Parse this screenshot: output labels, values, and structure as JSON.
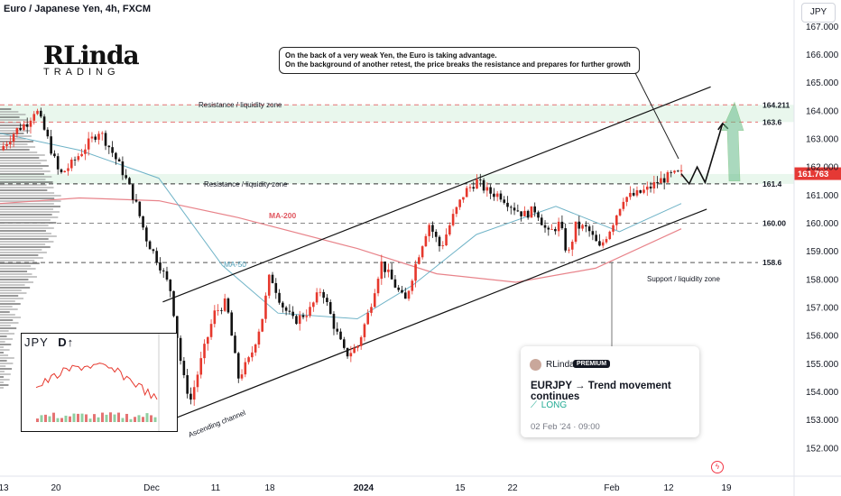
{
  "symbol_title": "Euro / Japanese Yen, 4h, FXCM",
  "currency_button": "JPY",
  "logo": {
    "top": "RLinda",
    "bottom": "TRADING"
  },
  "note": {
    "line1": "On the back of a very weak Yen, the Euro is taking advantage.",
    "line2": "On the background of another retest, the price breaks the resistance and prepares for further growth"
  },
  "card": {
    "author": "RLinda",
    "badge": "PREMIUM",
    "title": "EURJPY → Trend movement continues",
    "direction_icon": "trend-up-icon",
    "direction": "LONG",
    "date": "02 Feb '24 · 09:00"
  },
  "inset": {
    "symbol": "JPY",
    "symbol_mark": "D↑"
  },
  "colors": {
    "up": "#e6382d",
    "down": "#111111",
    "ma200": "#e8838a",
    "ma50": "#6fb3c7",
    "price_badge": "#e53935",
    "zone": "#dff3e6"
  },
  "chart_data": {
    "type": "candlestick",
    "symbol": "EURJPY",
    "timeframe": "4h",
    "yaxis": {
      "ticks": [
        "167.000",
        "166.000",
        "165.000",
        "164.000",
        "163.000",
        "162.000",
        "161.000",
        "160.000",
        "159.000",
        "158.000",
        "157.000",
        "156.000",
        "155.000",
        "154.000",
        "153.000",
        "152.000"
      ],
      "range": [
        151.0,
        167.3
      ]
    },
    "xaxis": {
      "ticks": [
        "13",
        "20",
        "Dec",
        "11",
        "18",
        "2024",
        "15",
        "22",
        "Feb",
        "12",
        "19"
      ]
    },
    "last_price": "161.763",
    "levels": [
      {
        "price": 164.211,
        "label": "164.211"
      },
      {
        "price": 163.6,
        "label": "163.6"
      },
      {
        "price": 161.4,
        "label": "161.4"
      },
      {
        "price": 160.0,
        "label": "160.00"
      },
      {
        "price": 158.6,
        "label": "158.6"
      }
    ],
    "annotations": {
      "resistance_top": "Resistance / liquidity zone",
      "resistance_mid": "Resistance / liquidity zone",
      "support": "Support / liquidity zone",
      "channel": "Ascending channel",
      "ma200": "MA-200",
      "ma50": "MA-50"
    },
    "channel": {
      "upper": [
        {
          "t": 0.205,
          "price": 157.2
        },
        {
          "t": 0.895,
          "price": 164.85
        }
      ],
      "lower": [
        {
          "t": 0.215,
          "price": 153.0
        },
        {
          "t": 0.89,
          "price": 160.5
        }
      ]
    },
    "anchors": [
      {
        "t": 0.0,
        "price": 162.6
      },
      {
        "t": 0.02,
        "price": 163.3
      },
      {
        "t": 0.035,
        "price": 163.6
      },
      {
        "t": 0.045,
        "price": 164.1
      },
      {
        "t": 0.06,
        "price": 163.0
      },
      {
        "t": 0.075,
        "price": 161.7
      },
      {
        "t": 0.09,
        "price": 162.1
      },
      {
        "t": 0.11,
        "price": 162.8
      },
      {
        "t": 0.125,
        "price": 163.3
      },
      {
        "t": 0.14,
        "price": 162.6
      },
      {
        "t": 0.155,
        "price": 161.8
      },
      {
        "t": 0.17,
        "price": 160.8
      },
      {
        "t": 0.185,
        "price": 159.4
      },
      {
        "t": 0.2,
        "price": 158.6
      },
      {
        "t": 0.215,
        "price": 157.6
      },
      {
        "t": 0.23,
        "price": 154.6
      },
      {
        "t": 0.24,
        "price": 153.7
      },
      {
        "t": 0.255,
        "price": 155.3
      },
      {
        "t": 0.27,
        "price": 156.8
      },
      {
        "t": 0.285,
        "price": 157.2
      },
      {
        "t": 0.3,
        "price": 154.5
      },
      {
        "t": 0.315,
        "price": 155.2
      },
      {
        "t": 0.33,
        "price": 156.6
      },
      {
        "t": 0.34,
        "price": 158.2
      },
      {
        "t": 0.355,
        "price": 157.1
      },
      {
        "t": 0.37,
        "price": 156.5
      },
      {
        "t": 0.39,
        "price": 156.9
      },
      {
        "t": 0.405,
        "price": 157.7
      },
      {
        "t": 0.42,
        "price": 156.4
      },
      {
        "t": 0.435,
        "price": 155.3
      },
      {
        "t": 0.45,
        "price": 155.6
      },
      {
        "t": 0.465,
        "price": 156.9
      },
      {
        "t": 0.48,
        "price": 158.6
      },
      {
        "t": 0.495,
        "price": 157.9
      },
      {
        "t": 0.51,
        "price": 157.2
      },
      {
        "t": 0.525,
        "price": 158.7
      },
      {
        "t": 0.54,
        "price": 160.0
      },
      {
        "t": 0.555,
        "price": 159.1
      },
      {
        "t": 0.57,
        "price": 160.2
      },
      {
        "t": 0.585,
        "price": 161.1
      },
      {
        "t": 0.6,
        "price": 161.5
      },
      {
        "t": 0.615,
        "price": 161.1
      },
      {
        "t": 0.63,
        "price": 161.0
      },
      {
        "t": 0.645,
        "price": 160.6
      },
      {
        "t": 0.66,
        "price": 160.3
      },
      {
        "t": 0.675,
        "price": 160.5
      },
      {
        "t": 0.69,
        "price": 159.6
      },
      {
        "t": 0.705,
        "price": 160.0
      },
      {
        "t": 0.715,
        "price": 158.8
      },
      {
        "t": 0.725,
        "price": 159.9
      },
      {
        "t": 0.74,
        "price": 159.8
      },
      {
        "t": 0.755,
        "price": 159.1
      },
      {
        "t": 0.77,
        "price": 159.9
      },
      {
        "t": 0.785,
        "price": 160.9
      },
      {
        "t": 0.8,
        "price": 161.0
      },
      {
        "t": 0.815,
        "price": 161.2
      },
      {
        "t": 0.83,
        "price": 161.5
      },
      {
        "t": 0.845,
        "price": 161.7
      },
      {
        "t": 0.858,
        "price": 161.76
      }
    ],
    "ma200": [
      {
        "t": 0.0,
        "price": 160.7
      },
      {
        "t": 0.1,
        "price": 160.9
      },
      {
        "t": 0.2,
        "price": 160.8
      },
      {
        "t": 0.3,
        "price": 160.2
      },
      {
        "t": 0.45,
        "price": 159.1
      },
      {
        "t": 0.55,
        "price": 158.2
      },
      {
        "t": 0.65,
        "price": 157.9
      },
      {
        "t": 0.75,
        "price": 158.4
      },
      {
        "t": 0.858,
        "price": 159.8
      }
    ],
    "ma50": [
      {
        "t": 0.0,
        "price": 163.2
      },
      {
        "t": 0.1,
        "price": 162.6
      },
      {
        "t": 0.2,
        "price": 161.6
      },
      {
        "t": 0.28,
        "price": 158.5
      },
      {
        "t": 0.35,
        "price": 156.8
      },
      {
        "t": 0.45,
        "price": 156.6
      },
      {
        "t": 0.52,
        "price": 157.8
      },
      {
        "t": 0.6,
        "price": 159.6
      },
      {
        "t": 0.7,
        "price": 160.6
      },
      {
        "t": 0.78,
        "price": 159.7
      },
      {
        "t": 0.858,
        "price": 160.7
      }
    ],
    "projection": [
      {
        "t": 0.858,
        "price": 161.76
      },
      {
        "t": 0.868,
        "price": 161.4
      },
      {
        "t": 0.878,
        "price": 162.0
      },
      {
        "t": 0.888,
        "price": 161.45
      },
      {
        "t": 0.91,
        "price": 163.55
      }
    ]
  }
}
